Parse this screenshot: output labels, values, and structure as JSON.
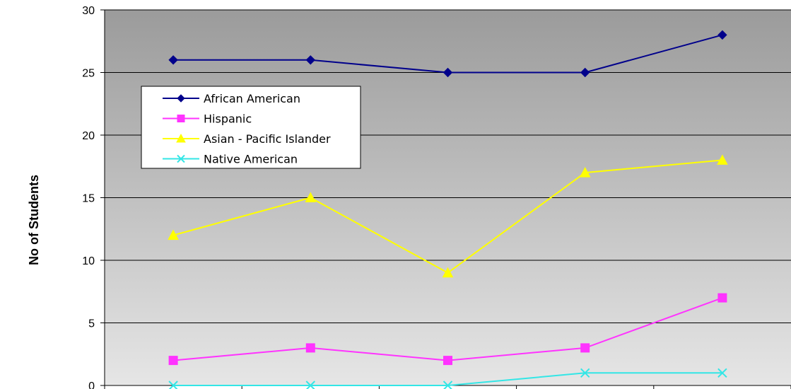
{
  "chart_data": {
    "type": "line",
    "title": "",
    "xlabel": "",
    "ylabel": "No of Students",
    "ylim": [
      0,
      30
    ],
    "yticks": [
      0,
      5,
      10,
      15,
      20,
      25,
      30
    ],
    "x": [
      1,
      2,
      3,
      4,
      5
    ],
    "grid": true,
    "legend_position": "upper-left",
    "series": [
      {
        "name": "African American",
        "values": [
          26,
          26,
          25,
          25,
          28
        ],
        "color": "#00008B",
        "marker": "diamond"
      },
      {
        "name": "Hispanic",
        "values": [
          2,
          3,
          2,
          3,
          7
        ],
        "color": "#FF33FF",
        "marker": "square"
      },
      {
        "name": "Asian - Pacific Islander",
        "values": [
          12,
          15,
          9,
          17,
          18
        ],
        "color": "#FFFF00",
        "marker": "triangle"
      },
      {
        "name": "Native American",
        "values": [
          0,
          0,
          0,
          1,
          1
        ],
        "color": "#33E6E6",
        "marker": "x"
      }
    ]
  }
}
